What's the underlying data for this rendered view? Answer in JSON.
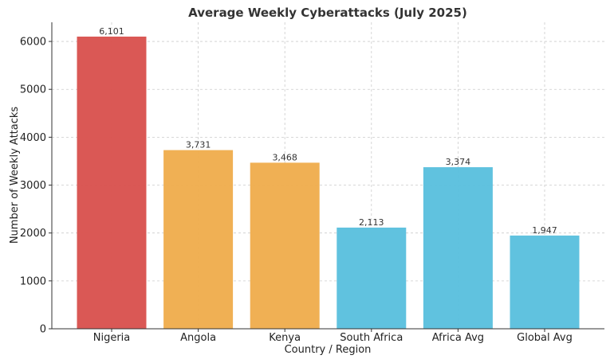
{
  "chart_data": {
    "type": "bar",
    "title": "Average Weekly Cyberattacks (July 2025)",
    "xlabel": "Country / Region",
    "ylabel": "Number of Weekly Attacks",
    "ylim": [
      0,
      6400
    ],
    "yticks": [
      0,
      1000,
      2000,
      3000,
      4000,
      5000,
      6000
    ],
    "grid": true,
    "categories": [
      "Nigeria",
      "Angola",
      "Kenya",
      "South Africa",
      "Africa Avg",
      "Global Avg"
    ],
    "values": [
      6101,
      3731,
      3468,
      2113,
      3374,
      1947
    ],
    "value_labels": [
      "6,101",
      "3,731",
      "3,468",
      "2,113",
      "3,374",
      "1,947"
    ],
    "colors": [
      "#d9534f",
      "#f0ad4e",
      "#f0ad4e",
      "#5bc0de",
      "#5bc0de",
      "#5bc0de"
    ]
  }
}
